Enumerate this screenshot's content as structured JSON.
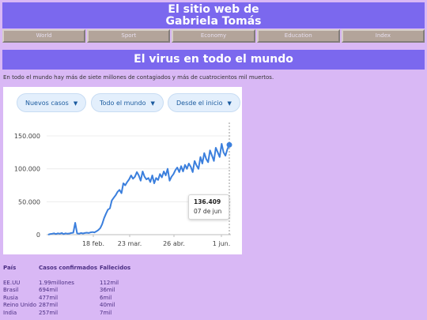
{
  "header": {
    "title_line1": "El sitio web de",
    "title_line2": "Gabriela Tomás"
  },
  "nav": {
    "items": [
      "World",
      "Sport",
      "Economy",
      "Education",
      "Index"
    ]
  },
  "section": {
    "title": "El virus en todo el mundo"
  },
  "intro": "En todo el mundo hay más de siete millones de contagiados y más de cuatrocientos mil muertos.",
  "filters": {
    "metric": "Nuevos casos",
    "region": "Todo el mundo",
    "period": "Desde el inicio"
  },
  "tooltip": {
    "value": "136.409",
    "date": "07 de jun"
  },
  "colors": {
    "line": "#3b7fdd",
    "header": "#7b68ee",
    "background": "#d9b8f5"
  },
  "chart_data": {
    "type": "line",
    "y_ticks": [
      "0",
      "50.000",
      "100.000",
      "150.000"
    ],
    "x_ticks": [
      "18 feb.",
      "23 mar.",
      "26 abr.",
      "1 jun."
    ],
    "ylim": [
      0,
      150000
    ],
    "series": [
      {
        "values": [
          0,
          1000,
          1500,
          2000,
          1000,
          2000,
          1500,
          2500,
          1000,
          2000,
          1500,
          1800,
          2500,
          3000,
          18000,
          2000,
          1500,
          2500,
          1800,
          2500,
          3000,
          2500,
          3500,
          4000,
          3500,
          5000,
          7000,
          10000,
          16000,
          25000,
          32000,
          38000,
          40000,
          52000,
          56000,
          60000,
          65000,
          68000,
          63000,
          78000,
          75000,
          80000,
          84000,
          90000,
          85000,
          88000,
          95000,
          90000,
          82000,
          96000,
          88000,
          84000,
          86000,
          80000,
          90000,
          78000,
          86000,
          83000,
          92000,
          87000,
          96000,
          90000,
          100000,
          82000,
          88000,
          92000,
          98000,
          102000,
          95000,
          104000,
          96000,
          106000,
          100000,
          108000,
          103000,
          95000,
          112000,
          105000,
          100000,
          118000,
          108000,
          124000,
          115000,
          110000,
          128000,
          120000,
          112000,
          132000,
          125000,
          118000,
          138000,
          125000,
          120000,
          130000,
          136409
        ]
      }
    ],
    "highlight": {
      "value": 136409,
      "label": "07 de jun"
    }
  },
  "stats": {
    "headers": [
      "País",
      "Casos confirmados",
      "Fallecidos"
    ],
    "rows": [
      [
        "EE.UU",
        "1.99millones",
        "112mil"
      ],
      [
        "Brasil",
        "694mil",
        "36mil"
      ],
      [
        "Rusia",
        "477mil",
        "6mil"
      ],
      [
        "Reino Unido",
        "287mil",
        "40mil"
      ],
      [
        "India",
        "257mil",
        "7mil"
      ]
    ]
  }
}
